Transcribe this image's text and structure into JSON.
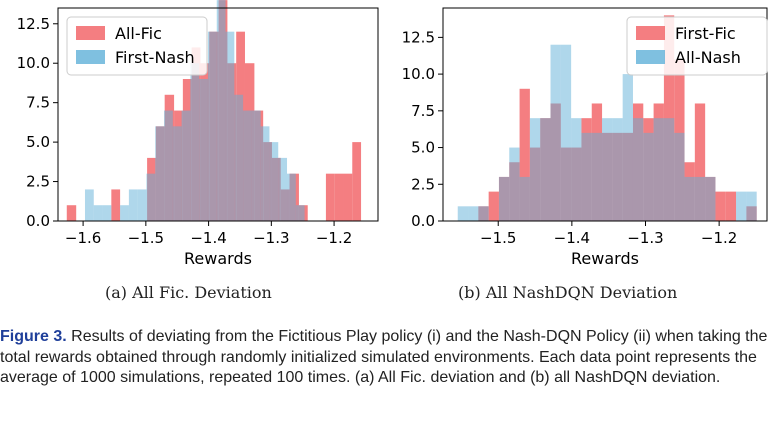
{
  "caption": {
    "label": "Figure 3.",
    "text": "Results of deviating from the Fictitious Play policy (i) and the Nash-DQN Policy (ii) when taking the total rewards obtained through randomly initialized simulated environments. Each data point represents the average of 1000 simulations, repeated 100 times. (a) All Fic. deviation and (b) all NashDQN deviation."
  },
  "subfigures": [
    {
      "label": "(a) All Fic. Deviation"
    },
    {
      "label": "(b) All NashDQN Deviation"
    }
  ],
  "colors": {
    "red": "#f2676b",
    "blue": "#5fb0d8",
    "overlap": "#8c6b95"
  },
  "chart_data": [
    {
      "type": "bar",
      "title": "",
      "xlabel": "Rewards",
      "ylabel": "",
      "xlim": [
        -1.64,
        -1.13
      ],
      "ylim": [
        0,
        13.5
      ],
      "x_ticks": [
        -1.6,
        -1.5,
        -1.4,
        -1.3,
        -1.2
      ],
      "x_tick_labels": [
        "−1.6",
        "−1.5",
        "−1.4",
        "−1.3",
        "−1.2"
      ],
      "y_ticks": [
        0,
        2.5,
        5,
        7.5,
        10,
        12.5
      ],
      "y_tick_labels": [
        "0.0",
        "2.5",
        "5.0",
        "7.5",
        "10.0",
        "12.5"
      ],
      "grid": false,
      "legend": "top-left",
      "series": [
        {
          "name": "All-Fic",
          "color": "#f2676b",
          "bins": [
            [
              -1.626,
              -1.611,
              1
            ],
            [
              -1.555,
              -1.541,
              2
            ],
            [
              -1.498,
              -1.484,
              4
            ],
            [
              -1.484,
              -1.47,
              6
            ],
            [
              -1.47,
              -1.455,
              8
            ],
            [
              -1.455,
              -1.441,
              7
            ],
            [
              -1.441,
              -1.427,
              9
            ],
            [
              -1.427,
              -1.413,
              11
            ],
            [
              -1.413,
              -1.399,
              10
            ],
            [
              -1.399,
              -1.384,
              12
            ],
            [
              -1.384,
              -1.37,
              14
            ],
            [
              -1.37,
              -1.356,
              10
            ],
            [
              -1.356,
              -1.342,
              12
            ],
            [
              -1.342,
              -1.327,
              10
            ],
            [
              -1.327,
              -1.313,
              7
            ],
            [
              -1.313,
              -1.299,
              5
            ],
            [
              -1.299,
              -1.285,
              4
            ],
            [
              -1.285,
              -1.271,
              2
            ],
            [
              -1.271,
              -1.256,
              3
            ],
            [
              -1.256,
              -1.242,
              1
            ],
            [
              -1.213,
              -1.199,
              3
            ],
            [
              -1.199,
              -1.185,
              3
            ],
            [
              -1.185,
              -1.171,
              3
            ],
            [
              -1.171,
              -1.157,
              5
            ]
          ]
        },
        {
          "name": "First-Nash",
          "color": "#5fb0d8",
          "bins": [
            [
              -1.597,
              -1.583,
              2
            ],
            [
              -1.583,
              -1.569,
              1
            ],
            [
              -1.569,
              -1.555,
              1
            ],
            [
              -1.541,
              -1.527,
              1
            ],
            [
              -1.527,
              -1.513,
              2
            ],
            [
              -1.513,
              -1.499,
              2
            ],
            [
              -1.499,
              -1.485,
              3
            ],
            [
              -1.485,
              -1.471,
              6
            ],
            [
              -1.471,
              -1.457,
              7
            ],
            [
              -1.457,
              -1.443,
              6
            ],
            [
              -1.443,
              -1.429,
              7
            ],
            [
              -1.429,
              -1.415,
              10
            ],
            [
              -1.415,
              -1.401,
              9
            ],
            [
              -1.401,
              -1.387,
              12
            ],
            [
              -1.387,
              -1.373,
              14
            ],
            [
              -1.373,
              -1.359,
              12
            ],
            [
              -1.359,
              -1.345,
              8
            ],
            [
              -1.345,
              -1.331,
              7
            ],
            [
              -1.331,
              -1.317,
              7
            ],
            [
              -1.317,
              -1.303,
              6
            ],
            [
              -1.303,
              -1.289,
              5
            ],
            [
              -1.289,
              -1.275,
              4
            ],
            [
              -1.275,
              -1.261,
              3
            ],
            [
              -1.261,
              -1.247,
              1
            ]
          ]
        }
      ]
    },
    {
      "type": "bar",
      "title": "",
      "xlabel": "Rewards",
      "ylabel": "",
      "xlim": [
        -1.575,
        -1.135
      ],
      "ylim": [
        0,
        14.5
      ],
      "x_ticks": [
        -1.5,
        -1.4,
        -1.3,
        -1.2
      ],
      "x_tick_labels": [
        "−1.5",
        "−1.4",
        "−1.3",
        "−1.2"
      ],
      "y_ticks": [
        0,
        2.5,
        5,
        7.5,
        10,
        12.5
      ],
      "y_tick_labels": [
        "0.0",
        "2.5",
        "5.0",
        "7.5",
        "10.0",
        "12.5"
      ],
      "grid": false,
      "legend": "top-right",
      "series": [
        {
          "name": "First-Fic",
          "color": "#f2676b",
          "bins": [
            [
              -1.527,
              -1.513,
              1
            ],
            [
              -1.513,
              -1.499,
              2
            ],
            [
              -1.499,
              -1.485,
              3
            ],
            [
              -1.485,
              -1.471,
              4
            ],
            [
              -1.471,
              -1.457,
              9
            ],
            [
              -1.457,
              -1.443,
              5
            ],
            [
              -1.443,
              -1.429,
              7
            ],
            [
              -1.429,
              -1.415,
              8
            ],
            [
              -1.415,
              -1.401,
              5
            ],
            [
              -1.401,
              -1.387,
              5
            ],
            [
              -1.387,
              -1.373,
              7
            ],
            [
              -1.373,
              -1.359,
              8
            ],
            [
              -1.359,
              -1.345,
              6
            ],
            [
              -1.345,
              -1.331,
              6
            ],
            [
              -1.331,
              -1.317,
              6
            ],
            [
              -1.317,
              -1.303,
              8
            ],
            [
              -1.303,
              -1.289,
              7
            ],
            [
              -1.289,
              -1.275,
              8
            ],
            [
              -1.275,
              -1.261,
              14
            ],
            [
              -1.261,
              -1.247,
              11
            ],
            [
              -1.247,
              -1.233,
              4
            ],
            [
              -1.233,
              -1.219,
              8
            ],
            [
              -1.219,
              -1.205,
              3
            ],
            [
              -1.205,
              -1.191,
              2
            ],
            [
              -1.191,
              -1.177,
              2
            ],
            [
              -1.163,
              -1.149,
              1
            ]
          ]
        },
        {
          "name": "All-Nash",
          "color": "#5fb0d8",
          "bins": [
            [
              -1.555,
              -1.541,
              1
            ],
            [
              -1.541,
              -1.527,
              1
            ],
            [
              -1.527,
              -1.513,
              1
            ],
            [
              -1.499,
              -1.485,
              3
            ],
            [
              -1.485,
              -1.471,
              5
            ],
            [
              -1.471,
              -1.457,
              3
            ],
            [
              -1.457,
              -1.443,
              7
            ],
            [
              -1.443,
              -1.429,
              7
            ],
            [
              -1.429,
              -1.415,
              12
            ],
            [
              -1.415,
              -1.401,
              12
            ],
            [
              -1.401,
              -1.387,
              7
            ],
            [
              -1.387,
              -1.373,
              6
            ],
            [
              -1.373,
              -1.359,
              6
            ],
            [
              -1.359,
              -1.345,
              7
            ],
            [
              -1.345,
              -1.331,
              7
            ],
            [
              -1.331,
              -1.317,
              10
            ],
            [
              -1.317,
              -1.303,
              7
            ],
            [
              -1.303,
              -1.289,
              6
            ],
            [
              -1.289,
              -1.275,
              7
            ],
            [
              -1.275,
              -1.261,
              7
            ],
            [
              -1.261,
              -1.247,
              6
            ],
            [
              -1.247,
              -1.233,
              3
            ],
            [
              -1.233,
              -1.219,
              3
            ],
            [
              -1.219,
              -1.205,
              3
            ],
            [
              -1.177,
              -1.163,
              2
            ],
            [
              -1.163,
              -1.149,
              2
            ]
          ]
        }
      ]
    }
  ]
}
